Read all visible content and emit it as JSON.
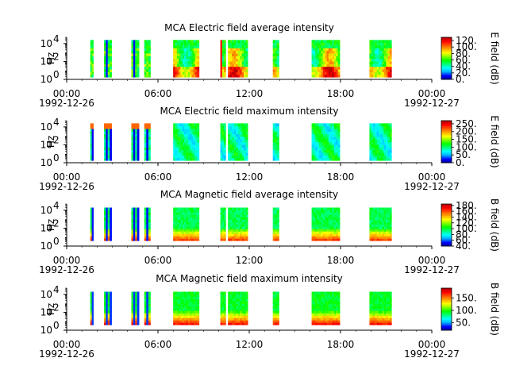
{
  "chart_data": [
    {
      "type": "heatmap",
      "title": "MCA  Electric field average intensity",
      "ylabel": "Hz",
      "colorbar_label": "E field (dB)",
      "colorbar_ticks": [
        "0.",
        "20.",
        "40.",
        "60.",
        "80.",
        "100.",
        "120."
      ],
      "colorbar_range": [
        0,
        130
      ],
      "style": "e_avg"
    },
    {
      "type": "heatmap",
      "title": "MCA  Electric field maximum intensity",
      "ylabel": "Hz",
      "colorbar_label": "E field (dB)",
      "colorbar_ticks": [
        "0.",
        "50.",
        "100.",
        "150.",
        "200.",
        "250."
      ],
      "colorbar_range": [
        0,
        270
      ],
      "style": "e_max"
    },
    {
      "type": "heatmap",
      "title": "MCA  Magnetic field average intensity",
      "ylabel": "Hz",
      "colorbar_label": "B field (dB)",
      "colorbar_ticks": [
        "40.",
        "60.",
        "80.",
        "100.",
        "120.",
        "140.",
        "160.",
        "180."
      ],
      "colorbar_range": [
        40,
        185
      ],
      "style": "b_avg"
    },
    {
      "type": "heatmap",
      "title": "MCA  Magnetic field maximum intensity",
      "ylabel": "Hz",
      "colorbar_label": "B field (dB)",
      "colorbar_ticks": [
        "50.",
        "100.",
        "150."
      ],
      "colorbar_range": [
        20,
        190
      ],
      "style": "b_max"
    }
  ],
  "axes": {
    "xticks": [
      "00:00",
      "06:00",
      "12:00",
      "18:00",
      "00:00"
    ],
    "xdate_start": "1992-12-26",
    "xdate_end": "1992-12-27",
    "yticks": [
      {
        "base": "10",
        "exp": "0"
      },
      {
        "base": "10",
        "exp": "2"
      },
      {
        "base": "10",
        "exp": "4"
      }
    ],
    "xrange_hours": [
      0,
      24
    ],
    "yrange_log10": [
      0,
      4.7
    ]
  },
  "data_segments_hours": [
    [
      1.55,
      1.75
    ],
    [
      2.45,
      2.95
    ],
    [
      4.25,
      4.75
    ],
    [
      5.1,
      5.5
    ],
    [
      7.0,
      8.7
    ],
    [
      10.1,
      10.45
    ],
    [
      10.6,
      11.9
    ],
    [
      13.55,
      13.95
    ],
    [
      16.1,
      17.95
    ],
    [
      19.9,
      21.35
    ]
  ],
  "colors": {
    "colormap": [
      "#00008b",
      "#0000ff",
      "#00aaff",
      "#00ffff",
      "#00ff7f",
      "#00ff00",
      "#80ff00",
      "#ffff00",
      "#ffaa00",
      "#ff5500",
      "#ff0000",
      "#b40000"
    ],
    "axis": "#000000",
    "background": "#ffffff"
  }
}
